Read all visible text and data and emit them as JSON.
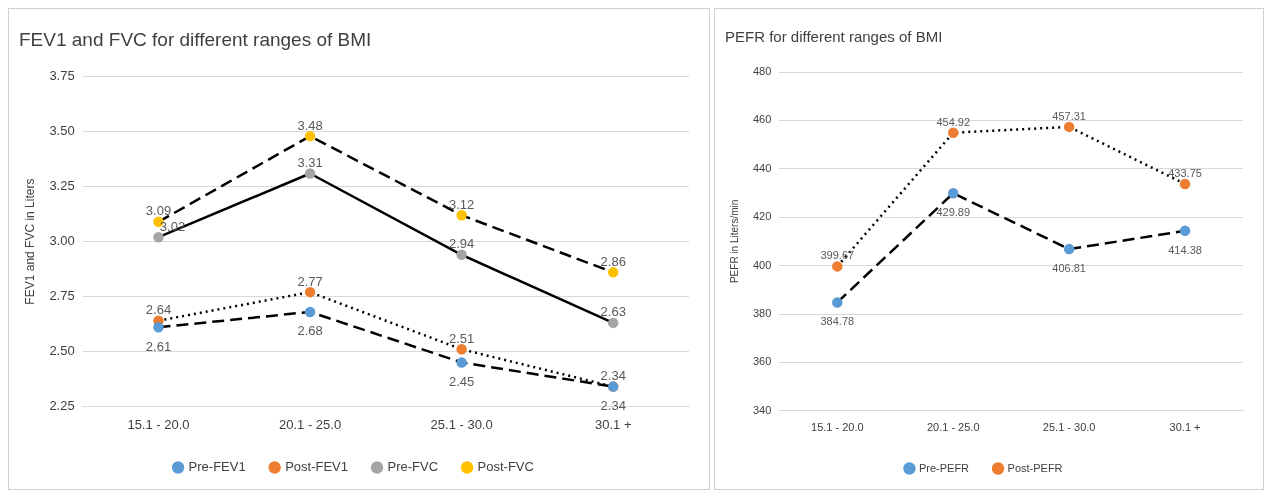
{
  "chart_data": [
    {
      "type": "line",
      "title": "FEV1 and FVC for different ranges of BMI",
      "ylabel": "FEV1 and FVC in Liters",
      "categories": [
        "15.1 - 20.0",
        "20.1 - 25.0",
        "25.1 - 30.0",
        "30.1 +"
      ],
      "series": [
        {
          "name": "Pre-FEV1",
          "color": "#5b9bd5",
          "line_style": "dashed",
          "values": [
            2.61,
            2.68,
            2.45,
            2.34
          ]
        },
        {
          "name": "Post-FEV1",
          "color": "#ed7d31",
          "line_style": "dotted",
          "values": [
            2.64,
            2.77,
            2.51,
            2.34
          ]
        },
        {
          "name": "Pre-FVC",
          "color": "#a5a5a5",
          "line_style": "solid",
          "values": [
            3.02,
            3.31,
            2.94,
            2.63
          ]
        },
        {
          "name": "Post-FVC",
          "color": "#ffc000",
          "line_style": "dashed",
          "values": [
            3.09,
            3.48,
            3.12,
            2.86
          ]
        }
      ],
      "ylim": [
        2.25,
        3.75
      ],
      "yticks": [
        2.25,
        {
          "value": 2.5,
          "label": "2.50"
        },
        2.75,
        {
          "value": 3,
          "label": "3.00"
        },
        3.25,
        {
          "value": 3.5,
          "label": "3.50"
        },
        3.75
      ],
      "grid": "y",
      "legend": "bottom",
      "marker": "circle",
      "data_labels": true
    },
    {
      "type": "line",
      "title": "PEFR for different ranges of BMI",
      "ylabel": "PEFR in Liters/min",
      "categories": [
        "15.1 - 20.0",
        "20.1 - 25.0",
        "25.1 - 30.0",
        "30.1 +"
      ],
      "series": [
        {
          "name": "Pre-PEFR",
          "color": "#5b9bd5",
          "line_style": "dashed",
          "values": [
            384.78,
            429.89,
            406.81,
            414.38
          ]
        },
        {
          "name": "Post-PEFR",
          "color": "#ed7d31",
          "line_style": "dotted",
          "values": [
            399.67,
            454.92,
            457.31,
            433.75
          ]
        }
      ],
      "ylim": [
        340,
        480
      ],
      "yticks": [
        340,
        360,
        380,
        400,
        420,
        440,
        460,
        480
      ],
      "grid": "y",
      "legend": "bottom",
      "marker": "circle",
      "data_labels": true
    }
  ]
}
